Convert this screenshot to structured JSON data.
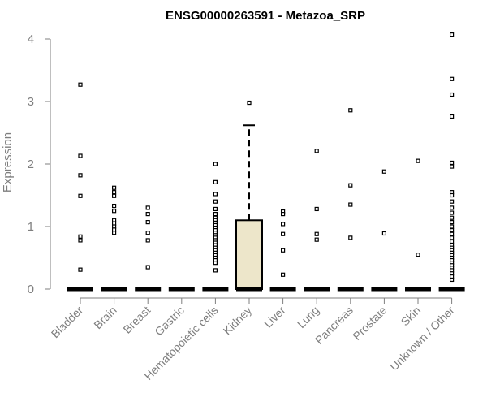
{
  "chart_data": {
    "type": "box",
    "title": "ENSG00000263591 - Metazoa_SRP",
    "xlabel": "",
    "ylabel": "Expression",
    "ylim": [
      0,
      4.1
    ],
    "yticks": [
      0,
      1,
      2,
      3,
      4
    ],
    "box_fill": "#ede6ca",
    "axis_color": "#7f7f7f",
    "categories": [
      {
        "name": "Bladder",
        "median": 0,
        "q1": 0,
        "q3": 0,
        "whisker_low": 0,
        "whisker_high": 0,
        "outliers": [
          3.27,
          2.13,
          1.82,
          1.49,
          0.84,
          0.78,
          0.31
        ]
      },
      {
        "name": "Brain",
        "median": 0,
        "q1": 0,
        "q3": 0,
        "whisker_low": 0,
        "whisker_high": 0,
        "outliers": [
          1.62,
          1.55,
          1.49,
          1.33,
          1.25,
          1.1,
          1.05,
          1.0,
          0.95,
          0.9
        ]
      },
      {
        "name": "Breast",
        "median": 0,
        "q1": 0,
        "q3": 0,
        "whisker_low": 0,
        "whisker_high": 0,
        "outliers": [
          1.3,
          1.2,
          1.07,
          0.9,
          0.78,
          0.35
        ]
      },
      {
        "name": "Gastric",
        "median": 0,
        "q1": 0,
        "q3": 0,
        "whisker_low": 0,
        "whisker_high": 0,
        "outliers": []
      },
      {
        "name": "Hematopoietic cells",
        "median": 0,
        "q1": 0,
        "q3": 0,
        "whisker_low": 0,
        "whisker_high": 0,
        "outliers": [
          2.0,
          1.71,
          1.52,
          1.4,
          1.28,
          1.2,
          1.14,
          1.1,
          1.06,
          1.02,
          0.98,
          0.94,
          0.9,
          0.86,
          0.82,
          0.78,
          0.74,
          0.7,
          0.66,
          0.62,
          0.58,
          0.54,
          0.5,
          0.46,
          0.42,
          0.3
        ]
      },
      {
        "name": "Kidney",
        "median": 0,
        "q1": 0,
        "q3": 1.1,
        "whisker_low": 0,
        "whisker_high": 2.62,
        "outliers": [
          2.98
        ]
      },
      {
        "name": "Liver",
        "median": 0,
        "q1": 0,
        "q3": 0,
        "whisker_low": 0,
        "whisker_high": 0,
        "outliers": [
          1.24,
          1.2,
          1.04,
          0.88,
          0.62,
          0.23
        ]
      },
      {
        "name": "Lung",
        "median": 0,
        "q1": 0,
        "q3": 0,
        "whisker_low": 0,
        "whisker_high": 0,
        "outliers": [
          2.21,
          1.28,
          0.88,
          0.79
        ]
      },
      {
        "name": "Pancreas",
        "median": 0,
        "q1": 0,
        "q3": 0,
        "whisker_low": 0,
        "whisker_high": 0,
        "outliers": [
          2.86,
          1.66,
          1.35,
          0.82
        ]
      },
      {
        "name": "Prostate",
        "median": 0,
        "q1": 0,
        "q3": 0,
        "whisker_low": 0,
        "whisker_high": 0,
        "outliers": [
          1.88,
          0.89
        ]
      },
      {
        "name": "Skin",
        "median": 0,
        "q1": 0,
        "q3": 0,
        "whisker_low": 0,
        "whisker_high": 0,
        "outliers": [
          2.05,
          0.55
        ]
      },
      {
        "name": "Unknown / Other",
        "median": 0,
        "q1": 0,
        "q3": 0,
        "whisker_low": 0,
        "whisker_high": 0,
        "outliers": [
          4.07,
          3.36,
          3.11,
          2.76,
          2.02,
          1.96,
          1.55,
          1.5,
          1.4,
          1.3,
          1.22,
          1.14,
          1.07,
          1.0,
          0.94,
          0.88,
          0.82,
          0.76,
          0.7,
          0.66,
          0.62,
          0.58,
          0.54,
          0.5,
          0.46,
          0.42,
          0.38,
          0.34,
          0.3,
          0.25,
          0.2,
          0.15
        ]
      }
    ]
  }
}
